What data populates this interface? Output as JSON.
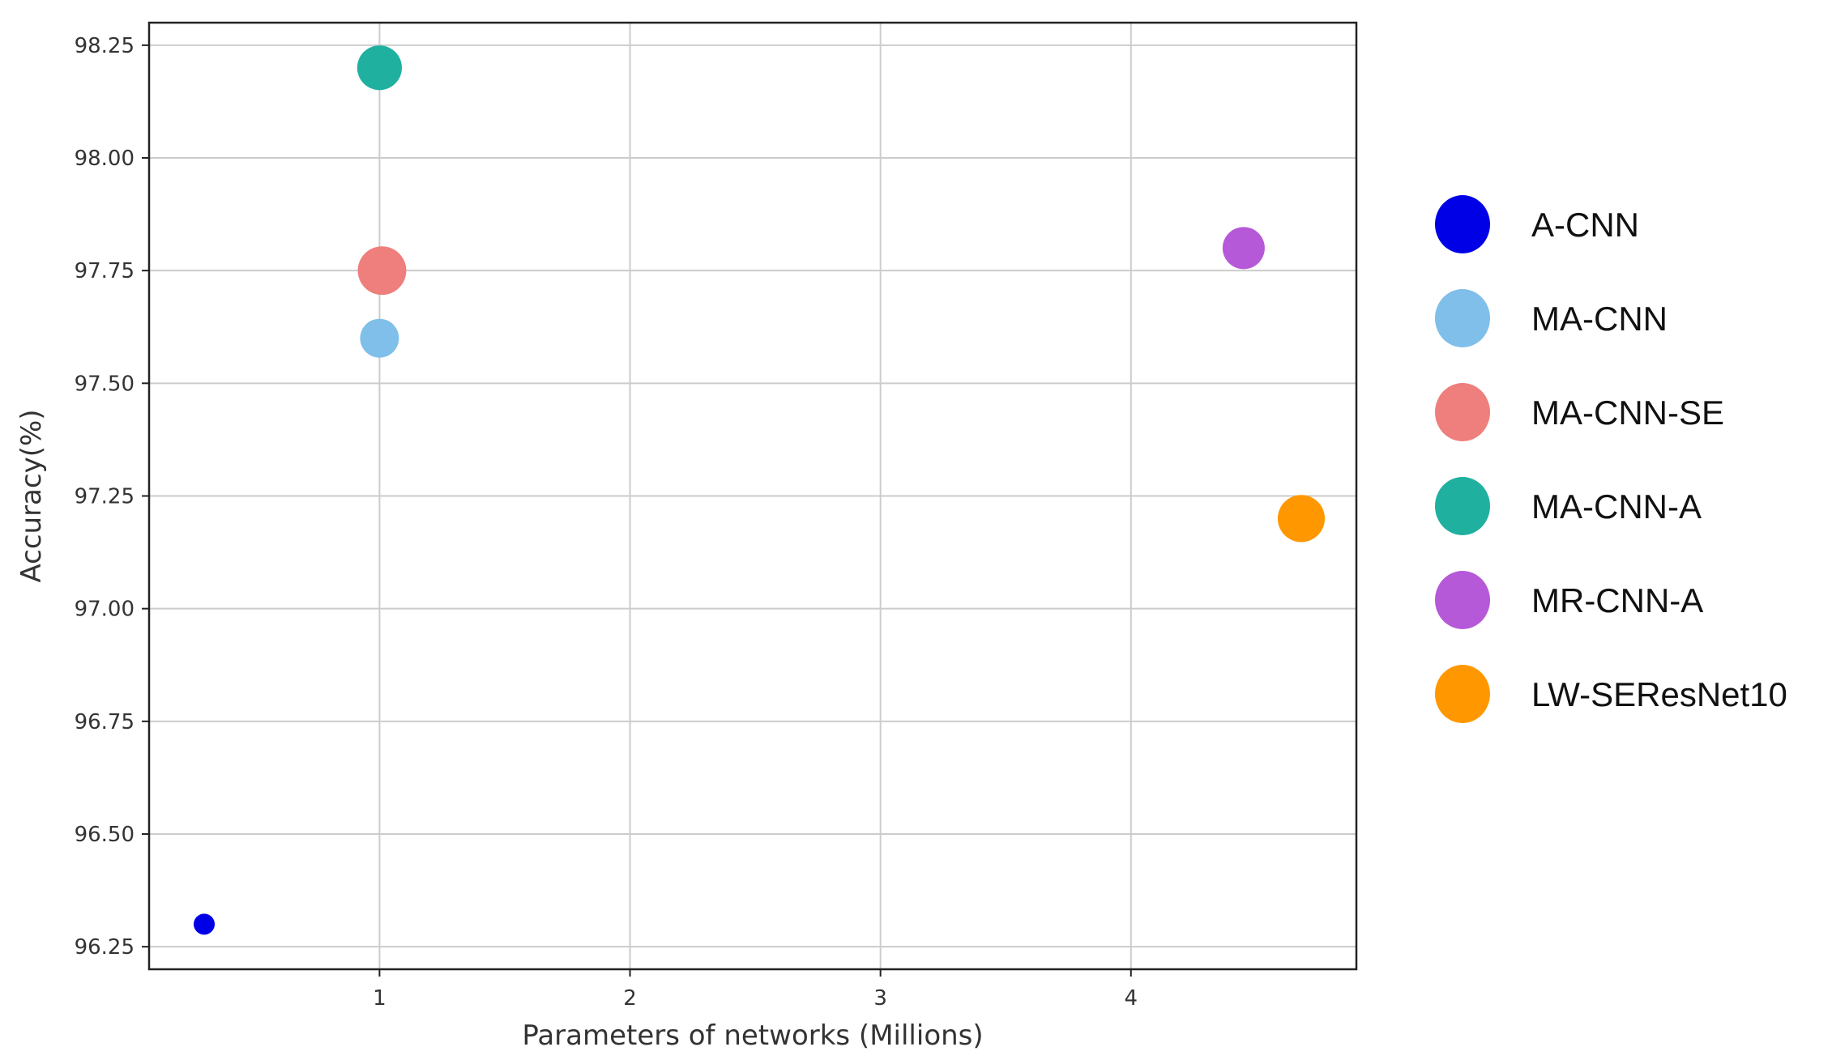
{
  "chart_data": {
    "type": "scatter",
    "title": "",
    "xlabel": "Parameters of networks (Millions)",
    "ylabel": "Accuracy(%)",
    "xlim": [
      0.08,
      4.9
    ],
    "ylim": [
      96.2,
      98.3
    ],
    "xticks": [
      1,
      2,
      3,
      4
    ],
    "yticks": [
      96.25,
      96.5,
      96.75,
      97.0,
      97.25,
      97.5,
      97.75,
      98.0,
      98.25
    ],
    "grid": true,
    "legend_position": "outside-right",
    "series": [
      {
        "name": "A-CNN",
        "color": "#0000e6",
        "x": 0.3,
        "y": 96.3,
        "size": 1
      },
      {
        "name": "MA-CNN",
        "color": "#7fbfea",
        "x": 1.0,
        "y": 97.6,
        "size": 3.4
      },
      {
        "name": "MA-CNN-SE",
        "color": "#ee7f7c",
        "x": 1.01,
        "y": 97.75,
        "size": 5.3
      },
      {
        "name": "MA-CNN-A",
        "color": "#20b0a0",
        "x": 1.0,
        "y": 98.2,
        "size": 4.5
      },
      {
        "name": "MR-CNN-A",
        "color": "#b659d8",
        "x": 4.45,
        "y": 97.8,
        "size": 4.0
      },
      {
        "name": "LW-SEResNet10",
        "color": "#ff9800",
        "x": 4.68,
        "y": 97.2,
        "size": 5.0
      }
    ]
  }
}
